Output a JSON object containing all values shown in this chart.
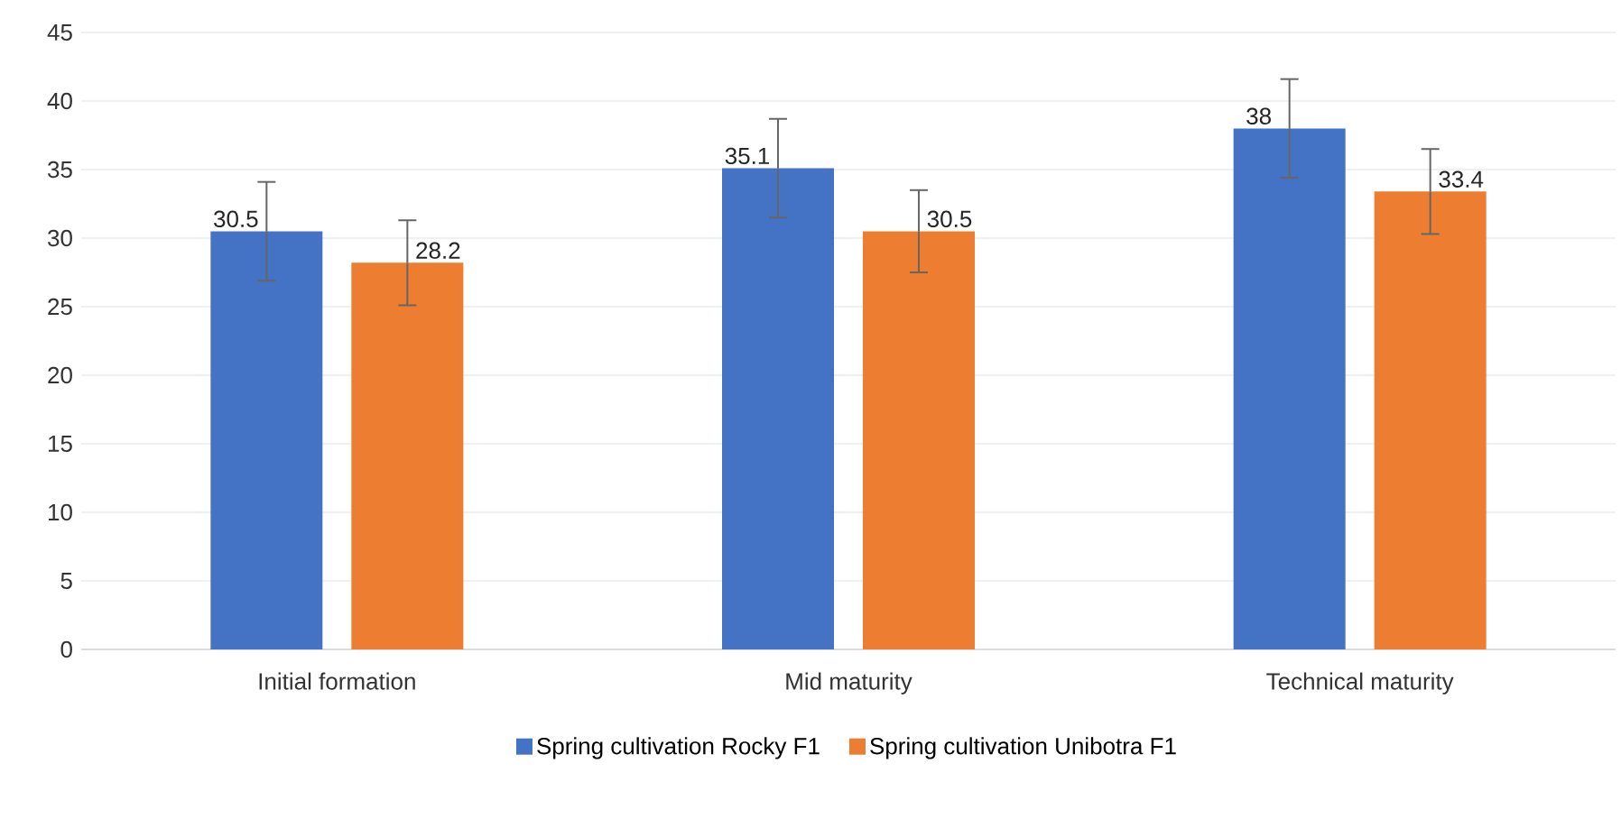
{
  "chart_data": {
    "type": "bar",
    "categories": [
      "Initial formation",
      "Mid maturity",
      "Technical maturity"
    ],
    "series": [
      {
        "name": "Spring cultivation  Rocky F1",
        "color": "#4472c4",
        "values": [
          30.5,
          35.1,
          38
        ],
        "errors": [
          3.6,
          3.6,
          3.6
        ]
      },
      {
        "name": "Spring cultivation  Unibotra F1",
        "color": "#ed7d31",
        "values": [
          28.2,
          30.5,
          33.4
        ],
        "errors": [
          3.1,
          3.0,
          3.1
        ]
      }
    ],
    "ylim": [
      0,
      45
    ],
    "yticks": [
      0,
      5,
      10,
      15,
      20,
      25,
      30,
      35,
      40,
      45
    ],
    "grid": "y",
    "legend": "bottom",
    "data_labels": true
  }
}
